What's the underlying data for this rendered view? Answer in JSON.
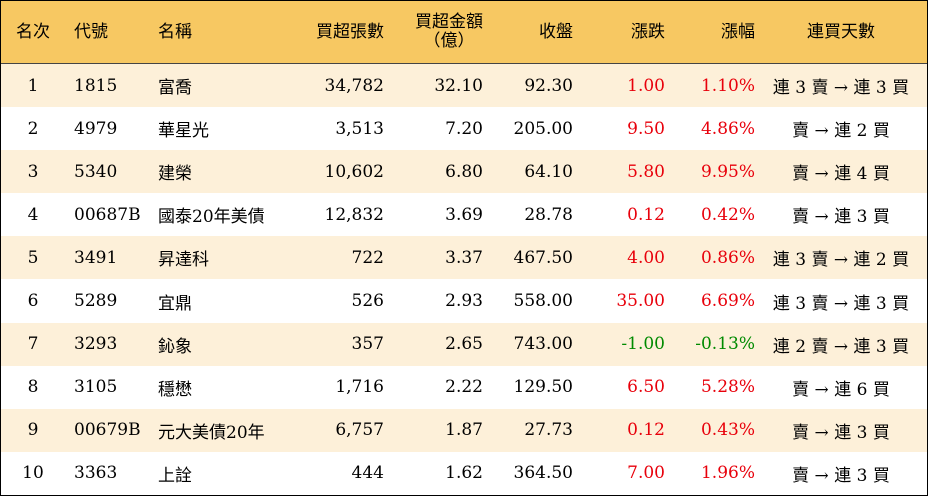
{
  "header": {
    "rank": "名次",
    "code": "代號",
    "name": "名稱",
    "net_buy_lots": "買超張數",
    "net_buy_amount_line1": "買超金額",
    "net_buy_amount_line2": "（億）",
    "close": "收盤",
    "change": "漲跌",
    "change_pct": "漲幅",
    "streak": "連買天數"
  },
  "rows": [
    {
      "rank": "1",
      "code": "1815",
      "name": "富喬",
      "lots": "34,782",
      "amount": "32.10",
      "close": "92.30",
      "change": "1.00",
      "pct": "1.10%",
      "dir": "up",
      "streak": "連 3 賣 → 連 3 買"
    },
    {
      "rank": "2",
      "code": "4979",
      "name": "華星光",
      "lots": "3,513",
      "amount": "7.20",
      "close": "205.00",
      "change": "9.50",
      "pct": "4.86%",
      "dir": "up",
      "streak": "賣 → 連 2 買"
    },
    {
      "rank": "3",
      "code": "5340",
      "name": "建榮",
      "lots": "10,602",
      "amount": "6.80",
      "close": "64.10",
      "change": "5.80",
      "pct": "9.95%",
      "dir": "up",
      "streak": "賣 → 連 4 買"
    },
    {
      "rank": "4",
      "code": "00687B",
      "name": "國泰20年美債",
      "lots": "12,832",
      "amount": "3.69",
      "close": "28.78",
      "change": "0.12",
      "pct": "0.42%",
      "dir": "up",
      "streak": "賣 → 連 3 買"
    },
    {
      "rank": "5",
      "code": "3491",
      "name": "昇達科",
      "lots": "722",
      "amount": "3.37",
      "close": "467.50",
      "change": "4.00",
      "pct": "0.86%",
      "dir": "up",
      "streak": "連 3 賣 → 連 2 買"
    },
    {
      "rank": "6",
      "code": "5289",
      "name": "宜鼎",
      "lots": "526",
      "amount": "2.93",
      "close": "558.00",
      "change": "35.00",
      "pct": "6.69%",
      "dir": "up",
      "streak": "連 3 賣 → 連 3 買"
    },
    {
      "rank": "7",
      "code": "3293",
      "name": "鈊象",
      "lots": "357",
      "amount": "2.65",
      "close": "743.00",
      "change": "-1.00",
      "pct": "-0.13%",
      "dir": "down",
      "streak": "連 2 賣 → 連 3 買"
    },
    {
      "rank": "8",
      "code": "3105",
      "name": "穩懋",
      "lots": "1,716",
      "amount": "2.22",
      "close": "129.50",
      "change": "6.50",
      "pct": "5.28%",
      "dir": "up",
      "streak": "賣 → 連 6 買"
    },
    {
      "rank": "9",
      "code": "00679B",
      "name": "元大美債20年",
      "lots": "6,757",
      "amount": "1.87",
      "close": "27.73",
      "change": "0.12",
      "pct": "0.43%",
      "dir": "up",
      "streak": "賣 → 連 3 買"
    },
    {
      "rank": "10",
      "code": "3363",
      "name": "上詮",
      "lots": "444",
      "amount": "1.62",
      "close": "364.50",
      "change": "7.00",
      "pct": "1.96%",
      "dir": "up",
      "streak": "賣 → 連 3 買"
    }
  ],
  "colors": {
    "header_bg": "#f7c862",
    "odd_row_bg": "#fdf0d9",
    "even_row_bg": "#ffffff",
    "up": "#e8000b",
    "down": "#008a00"
  }
}
